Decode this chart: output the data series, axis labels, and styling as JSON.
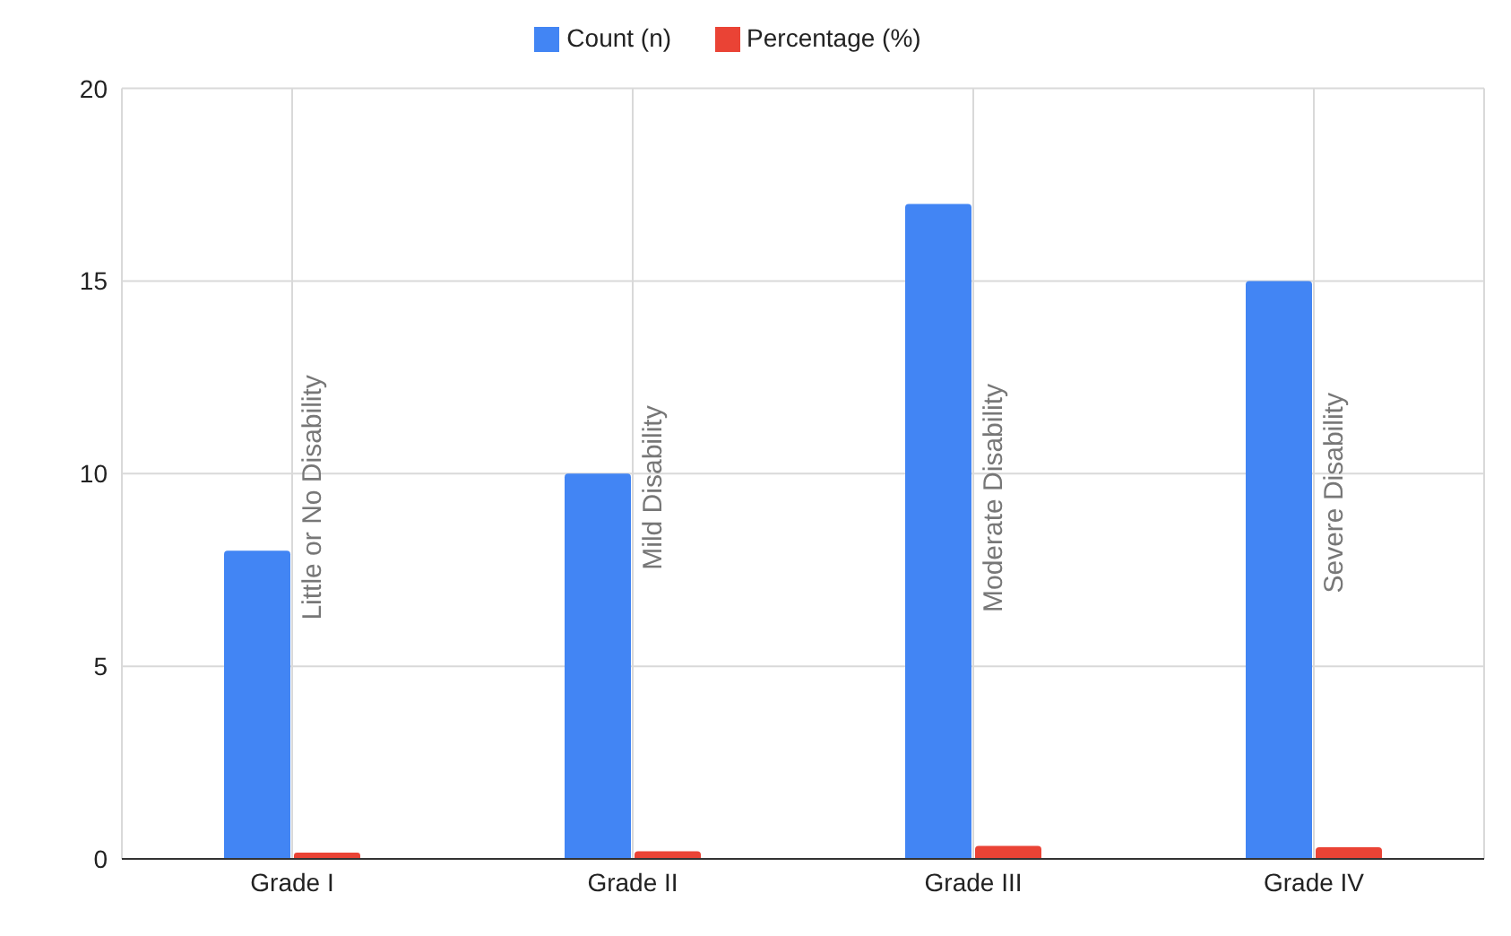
{
  "chart_data": {
    "type": "bar",
    "categories": [
      "Grade I",
      "Grade II",
      "Grade III",
      "Grade IV"
    ],
    "series": [
      {
        "name": "Count (n)",
        "color": "#4285f4",
        "values": [
          8,
          10,
          17,
          15
        ]
      },
      {
        "name": "Percentage (%)",
        "color": "#ea4335",
        "values": [
          0.16,
          0.2,
          0.34,
          0.3
        ]
      }
    ],
    "ylim": [
      0,
      20
    ],
    "yticks": [
      0,
      5,
      10,
      15,
      20
    ],
    "grid": true,
    "legend": "top",
    "annotations": [
      {
        "text": "Little or No Disability",
        "x": "Grade I",
        "y": 6.2
      },
      {
        "text": "Mild Disability",
        "x": "Grade II",
        "y": 7.5
      },
      {
        "text": "Moderate Disability",
        "x": "Grade III",
        "y": 6.4
      },
      {
        "text": "Severe Disability",
        "x": "Grade IV",
        "y": 6.9
      }
    ]
  }
}
